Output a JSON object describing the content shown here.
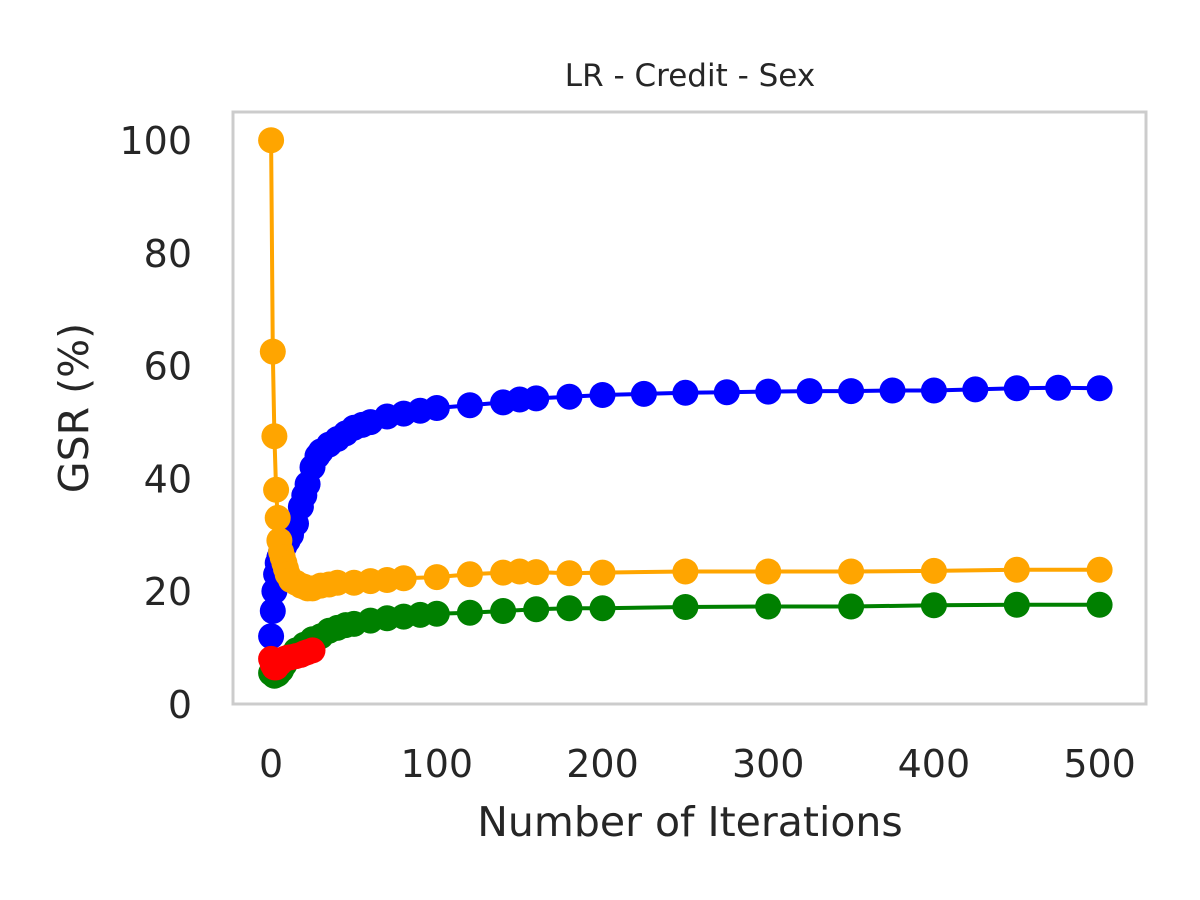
{
  "chart_data": {
    "type": "line",
    "title": "LR - Credit - Sex",
    "xlabel": "Number of Iterations",
    "ylabel": "GSR (%)",
    "xlim": [
      -23,
      528
    ],
    "ylim": [
      0,
      105
    ],
    "xticks": [
      0,
      100,
      200,
      300,
      400,
      500
    ],
    "yticks": [
      0,
      20,
      40,
      60,
      80,
      100
    ],
    "grid": false,
    "legend": "none",
    "colors": {
      "axes_frame": "#cccccc",
      "text": "#262626"
    },
    "series": [
      {
        "color": "#0000ff",
        "x": [
          0,
          1,
          2,
          3,
          4,
          5,
          6,
          8,
          10,
          12,
          15,
          18,
          20,
          22,
          25,
          28,
          30,
          35,
          40,
          45,
          50,
          55,
          60,
          70,
          80,
          90,
          100,
          120,
          140,
          150,
          160,
          180,
          200,
          225,
          250,
          275,
          300,
          325,
          350,
          375,
          400,
          425,
          450,
          475,
          500
        ],
        "y": [
          12,
          16.5,
          20,
          23,
          25,
          26,
          27,
          28,
          29,
          30,
          32,
          35,
          37,
          39,
          42,
          44,
          44.8,
          46,
          47,
          48,
          49,
          49.5,
          50,
          51,
          51.5,
          52,
          52.5,
          53,
          53.5,
          54,
          54.2,
          54.5,
          54.8,
          55,
          55.2,
          55.3,
          55.4,
          55.5,
          55.5,
          55.6,
          55.6,
          55.8,
          56,
          56.1,
          56
        ]
      },
      {
        "color": "#ffa500",
        "x": [
          0,
          1,
          2,
          3,
          4,
          5,
          6,
          7,
          8,
          9,
          10,
          12,
          15,
          18,
          20,
          22,
          25,
          30,
          35,
          40,
          50,
          60,
          70,
          80,
          100,
          120,
          140,
          150,
          160,
          180,
          200,
          250,
          300,
          350,
          400,
          450,
          500
        ],
        "y": [
          100,
          62.5,
          47.5,
          38,
          33,
          29,
          27,
          26,
          25,
          24,
          23,
          22,
          21.5,
          21,
          20.8,
          20.5,
          20.5,
          21,
          21.2,
          21.5,
          21.5,
          21.8,
          22,
          22.3,
          22.5,
          23,
          23.3,
          23.5,
          23.4,
          23.2,
          23.3,
          23.5,
          23.5,
          23.5,
          23.6,
          23.8,
          23.8
        ]
      },
      {
        "color": "#008000",
        "x": [
          0,
          2,
          4,
          6,
          8,
          10,
          12,
          15,
          20,
          25,
          30,
          35,
          40,
          45,
          50,
          60,
          70,
          80,
          90,
          100,
          120,
          140,
          160,
          180,
          200,
          250,
          300,
          350,
          400,
          450,
          500
        ],
        "y": [
          5.5,
          5,
          5.3,
          6,
          7,
          8,
          8.5,
          9.5,
          10.5,
          11.5,
          12,
          13,
          13.5,
          14,
          14.2,
          14.8,
          15.2,
          15.5,
          15.8,
          16,
          16.2,
          16.5,
          16.8,
          17,
          17,
          17.2,
          17.3,
          17.3,
          17.5,
          17.6,
          17.6
        ]
      },
      {
        "color": "#ff0000",
        "x": [
          0,
          1,
          2,
          3,
          4,
          5,
          6,
          7,
          8,
          10,
          12,
          15,
          18,
          20,
          22,
          25
        ],
        "y": [
          8,
          7,
          6.5,
          6.5,
          7,
          7.2,
          7.5,
          7.8,
          8,
          8.2,
          8.3,
          8.5,
          8.7,
          9,
          9.2,
          9.5
        ]
      }
    ]
  }
}
